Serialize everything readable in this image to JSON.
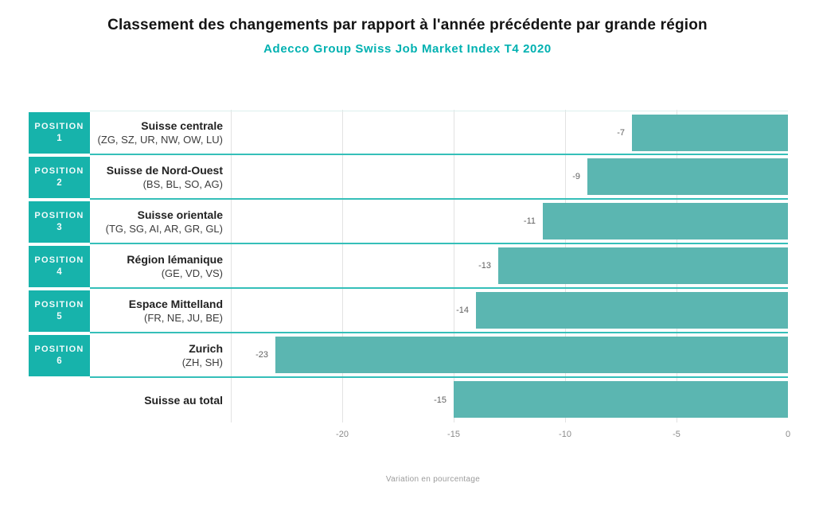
{
  "header": {
    "title": "Classement des changements par rapport à l'année précédente par grande région",
    "subtitle": "Adecco Group Swiss Job Market Index T4 2020"
  },
  "colors": {
    "bar_fill": "#5bb6b1",
    "position_box": "#17b3ab",
    "row_separator": "#35bfb9",
    "subtitle_text": "#00b1b1",
    "gridline": "#e2e2e2",
    "value_label": "#606060",
    "tick_label": "#8a8a8a"
  },
  "chart_data": {
    "type": "bar",
    "orientation": "horizontal",
    "title": "Classement des changements par rapport à l'année précédente par grande région",
    "subtitle": "Adecco Group Swiss Job Market Index T4 2020",
    "xlabel": "Variation en pourcentage",
    "xlim": [
      -25,
      0
    ],
    "xticks": [
      -20,
      -15,
      -10,
      -5,
      0
    ],
    "gridline_values": [
      -25,
      -20,
      -15,
      -10,
      -5
    ],
    "grid": "vertical",
    "legend_position": "none",
    "rows": [
      {
        "position_label": "POSITION",
        "position_number": "1",
        "region": "Suisse centrale",
        "cantons": "(ZG, SZ, UR, NW, OW, LU)",
        "value": -7
      },
      {
        "position_label": "POSITION",
        "position_number": "2",
        "region": "Suisse de Nord-Ouest",
        "cantons": "(BS, BL, SO, AG)",
        "value": -9
      },
      {
        "position_label": "POSITION",
        "position_number": "3",
        "region": "Suisse orientale",
        "cantons": "(TG, SG, AI, AR, GR, GL)",
        "value": -11
      },
      {
        "position_label": "POSITION",
        "position_number": "4",
        "region": "Région lémanique",
        "cantons": "(GE, VD, VS)",
        "value": -13
      },
      {
        "position_label": "POSITION",
        "position_number": "5",
        "region": "Espace Mittelland",
        "cantons": "(FR, NE, JU, BE)",
        "value": -14
      },
      {
        "position_label": "POSITION",
        "position_number": "6",
        "region": "Zurich",
        "cantons": "(ZH, SH)",
        "value": -23
      },
      {
        "position_label": "",
        "position_number": "",
        "region": "Suisse au total",
        "cantons": "",
        "value": -15
      }
    ]
  }
}
